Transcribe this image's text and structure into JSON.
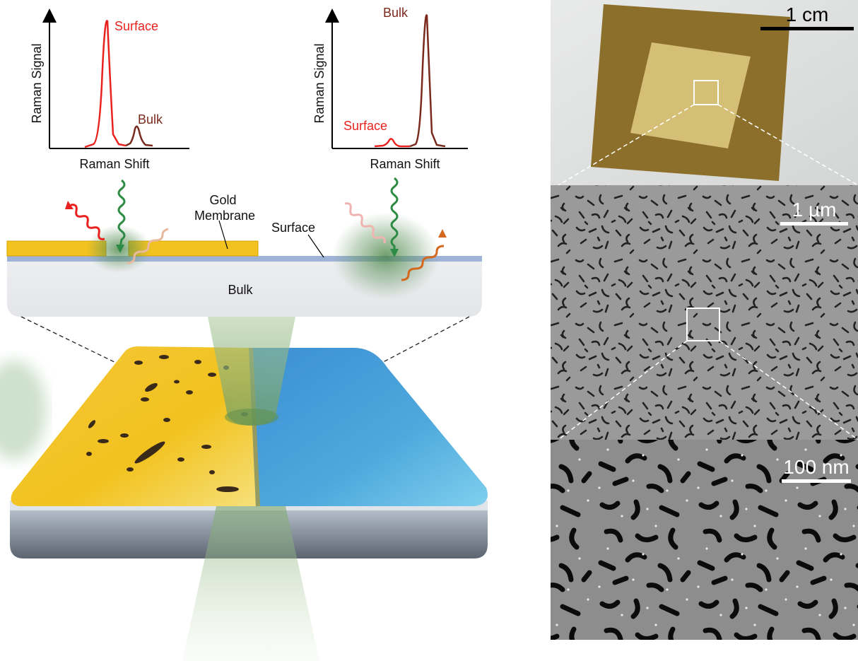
{
  "plots": {
    "left": {
      "y_label": "Raman Signal",
      "x_label": "Raman Shift",
      "peak_large_label": "Surface",
      "peak_small_label": "Bulk"
    },
    "right": {
      "y_label": "Raman Signal",
      "x_label": "Raman Shift",
      "peak_large_label": "Bulk",
      "peak_small_label": "Surface"
    }
  },
  "cross_section": {
    "gold_membrane_label": "Gold\nMembrane",
    "surface_label": "Surface",
    "bulk_label": "Bulk"
  },
  "micrographs": {
    "photo_scale": "1 cm",
    "sem_scale": "1 µm",
    "sem_zoom_scale": "100 nm"
  },
  "colors": {
    "gold": "#f2c21e",
    "surface_layer": "#9fb3d6",
    "bulk": "#e9eaec",
    "sample_blue": "#4ea8dc",
    "laser_green": "#6a9c5a",
    "surface_peak": "#e8231f",
    "bulk_peak": "#7a2a1c"
  }
}
